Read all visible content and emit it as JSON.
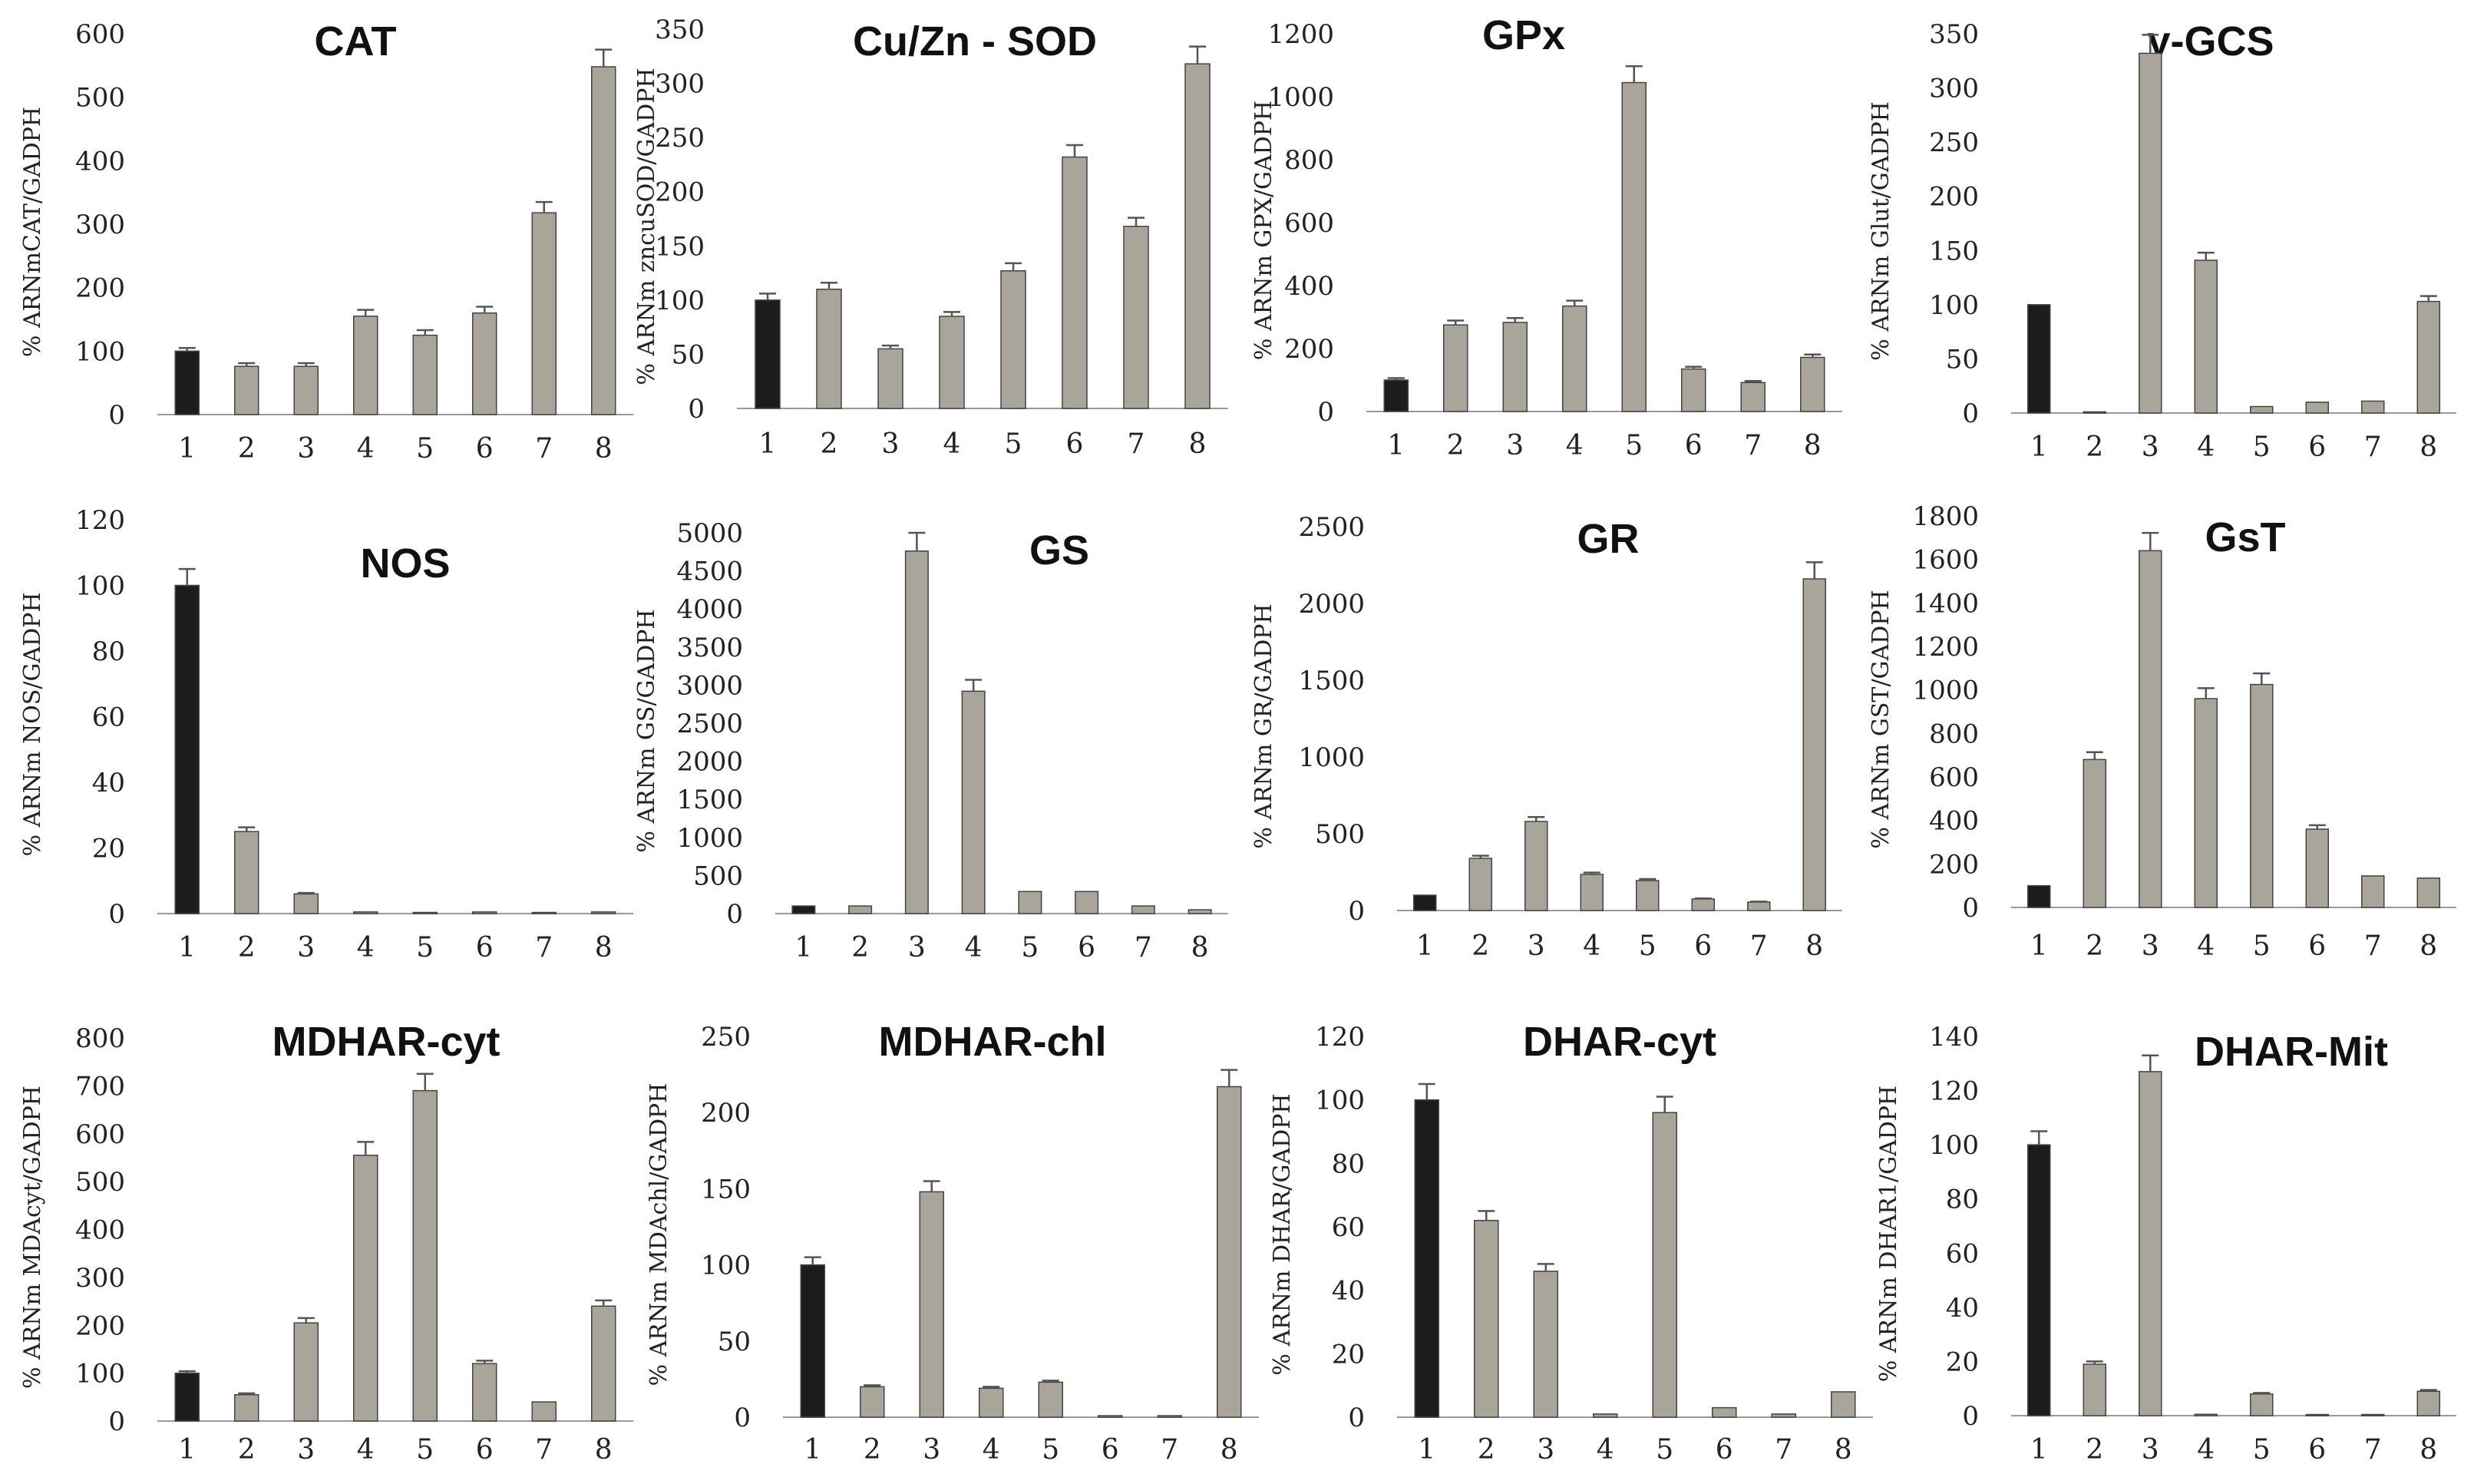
{
  "colors": {
    "control": "#1c1c1c",
    "treated": "#aaa59b",
    "bar_edge": "#444444",
    "error": "#555555"
  },
  "chart_data": [
    {
      "type": "bar",
      "title": "CAT",
      "ylabel": "% ARNmCAT/GADPH",
      "categories": [
        "1",
        "2",
        "3",
        "4",
        "5",
        "6",
        "7",
        "8"
      ],
      "values": [
        100,
        76,
        76,
        155,
        125,
        160,
        318,
        548
      ],
      "errors": [
        5,
        5,
        5,
        10,
        8,
        10,
        17,
        27
      ],
      "ylim": [
        0,
        600
      ],
      "yticks": [
        "0",
        "100",
        "200",
        "300",
        "400",
        "500",
        "600"
      ]
    },
    {
      "type": "bar",
      "title": "Cu/Zn - SOD",
      "ylabel": "% ARNm zncuSOD/GADPH",
      "categories": [
        "1",
        "2",
        "3",
        "4",
        "5",
        "6",
        "7",
        "8"
      ],
      "values": [
        100,
        110,
        55,
        85,
        127,
        232,
        168,
        318
      ],
      "errors": [
        6,
        6,
        3,
        4,
        7,
        11,
        8,
        16
      ],
      "ylim": [
        0,
        350
      ],
      "yticks": [
        "0",
        "50",
        "100",
        "150",
        "200",
        "250",
        "300",
        "350"
      ]
    },
    {
      "type": "bar",
      "title": "GPx",
      "ylabel": "% ARNm GPX/GADPH",
      "categories": [
        "1",
        "2",
        "3",
        "4",
        "5",
        "6",
        "7",
        "8"
      ],
      "values": [
        100,
        275,
        283,
        335,
        1045,
        135,
        92,
        172
      ],
      "errors": [
        6,
        14,
        14,
        17,
        52,
        7,
        5,
        9
      ],
      "ylim": [
        0,
        1200
      ],
      "yticks": [
        "0",
        "200",
        "400",
        "600",
        "800",
        "1000",
        "1200"
      ]
    },
    {
      "type": "bar",
      "title": "γ-GCS",
      "ylabel": "% ARNm Glut/GADPH",
      "categories": [
        "1",
        "2",
        "3",
        "4",
        "5",
        "6",
        "7",
        "8"
      ],
      "values": [
        100,
        1,
        332,
        141,
        6,
        10,
        11,
        103
      ],
      "errors": [
        0,
        0,
        17,
        7,
        0,
        0,
        0,
        5
      ],
      "ylim": [
        0,
        350
      ],
      "yticks": [
        "0",
        "50",
        "100",
        "150",
        "200",
        "250",
        "300",
        "350"
      ]
    },
    {
      "type": "bar",
      "title": "NOS",
      "ylabel": "% ARNm NOS/GADPH",
      "categories": [
        "1",
        "2",
        "3",
        "4",
        "5",
        "6",
        "7",
        "8"
      ],
      "values": [
        100,
        25,
        6,
        0.5,
        0.2,
        0.5,
        0.2,
        0.5
      ],
      "errors": [
        5,
        1.3,
        0.3,
        0,
        0,
        0,
        0,
        0
      ],
      "ylim": [
        0,
        120
      ],
      "yticks": [
        "0",
        "20",
        "40",
        "60",
        "80",
        "100",
        "120"
      ]
    },
    {
      "type": "bar",
      "title": "GS",
      "ylabel": "% ARNm GS/GADPH",
      "categories": [
        "1",
        "2",
        "3",
        "4",
        "5",
        "6",
        "7",
        "8"
      ],
      "values": [
        100,
        100,
        4760,
        2920,
        290,
        290,
        100,
        50
      ],
      "errors": [
        0,
        0,
        240,
        150,
        0,
        0,
        0,
        0
      ],
      "ylim": [
        0,
        5000
      ],
      "yticks": [
        "0",
        "500",
        "1000",
        "1500",
        "2000",
        "2500",
        "3000",
        "3500",
        "4000",
        "4500",
        "5000"
      ]
    },
    {
      "type": "bar",
      "title": "GR",
      "ylabel": "% ARNm GR/GADPH",
      "categories": [
        "1",
        "2",
        "3",
        "4",
        "5",
        "6",
        "7",
        "8"
      ],
      "values": [
        100,
        340,
        580,
        235,
        195,
        75,
        55,
        2160
      ],
      "errors": [
        0,
        17,
        29,
        12,
        10,
        4,
        3,
        108
      ],
      "ylim": [
        0,
        2500
      ],
      "yticks": [
        "0",
        "500",
        "1000",
        "1500",
        "2000",
        "2500"
      ]
    },
    {
      "type": "bar",
      "title": "GsT",
      "ylabel": "% ARNm GST/GADPH",
      "categories": [
        "1",
        "2",
        "3",
        "4",
        "5",
        "6",
        "7",
        "8"
      ],
      "values": [
        100,
        680,
        1640,
        960,
        1025,
        360,
        145,
        135
      ],
      "errors": [
        0,
        34,
        82,
        48,
        51,
        18,
        0,
        0
      ],
      "ylim": [
        0,
        1800
      ],
      "yticks": [
        "0",
        "200",
        "400",
        "600",
        "800",
        "1000",
        "1200",
        "1400",
        "1600",
        "1800"
      ]
    },
    {
      "type": "bar",
      "title": "MDHAR-cyt",
      "ylabel": "% ARNm MDAcyt/GADPH",
      "categories": [
        "1",
        "2",
        "3",
        "4",
        "5",
        "6",
        "7",
        "8"
      ],
      "values": [
        100,
        55,
        205,
        555,
        690,
        120,
        40,
        240
      ],
      "errors": [
        4,
        3,
        10,
        28,
        35,
        6,
        0,
        12
      ],
      "ylim": [
        0,
        800
      ],
      "yticks": [
        "0",
        "100",
        "200",
        "300",
        "400",
        "500",
        "600",
        "700",
        "800"
      ]
    },
    {
      "type": "bar",
      "title": "MDHAR-chl",
      "ylabel": "% ARNm MDAchl/GADPH",
      "categories": [
        "1",
        "2",
        "3",
        "4",
        "5",
        "6",
        "7",
        "8"
      ],
      "values": [
        100,
        20,
        148,
        19,
        23,
        1,
        1,
        217
      ],
      "errors": [
        5,
        1,
        7,
        1,
        1,
        0,
        0,
        11
      ],
      "ylim": [
        0,
        250
      ],
      "yticks": [
        "0",
        "50",
        "100",
        "150",
        "200",
        "250"
      ]
    },
    {
      "type": "bar",
      "title": "DHAR-cyt",
      "ylabel": "% ARNm DHAR/GADPH",
      "categories": [
        "1",
        "2",
        "3",
        "4",
        "5",
        "6",
        "7",
        "8"
      ],
      "values": [
        100,
        62,
        46,
        1,
        96,
        3,
        1,
        8
      ],
      "errors": [
        5,
        3,
        2.3,
        0,
        5,
        0,
        0,
        0
      ],
      "ylim": [
        0,
        120
      ],
      "yticks": [
        "0",
        "20",
        "40",
        "60",
        "80",
        "100",
        "120"
      ]
    },
    {
      "type": "bar",
      "title": "DHAR-Mit",
      "ylabel": "% ARNm DHAR1/GADPH",
      "categories": [
        "1",
        "2",
        "3",
        "4",
        "5",
        "6",
        "7",
        "8"
      ],
      "values": [
        100,
        19,
        127,
        0.5,
        8,
        0.3,
        0.3,
        9
      ],
      "errors": [
        5,
        1,
        6,
        0,
        0.4,
        0,
        0,
        0.5
      ],
      "ylim": [
        0,
        140
      ],
      "yticks": [
        "0",
        "20",
        "40",
        "60",
        "80",
        "100",
        "120",
        "140"
      ]
    }
  ]
}
